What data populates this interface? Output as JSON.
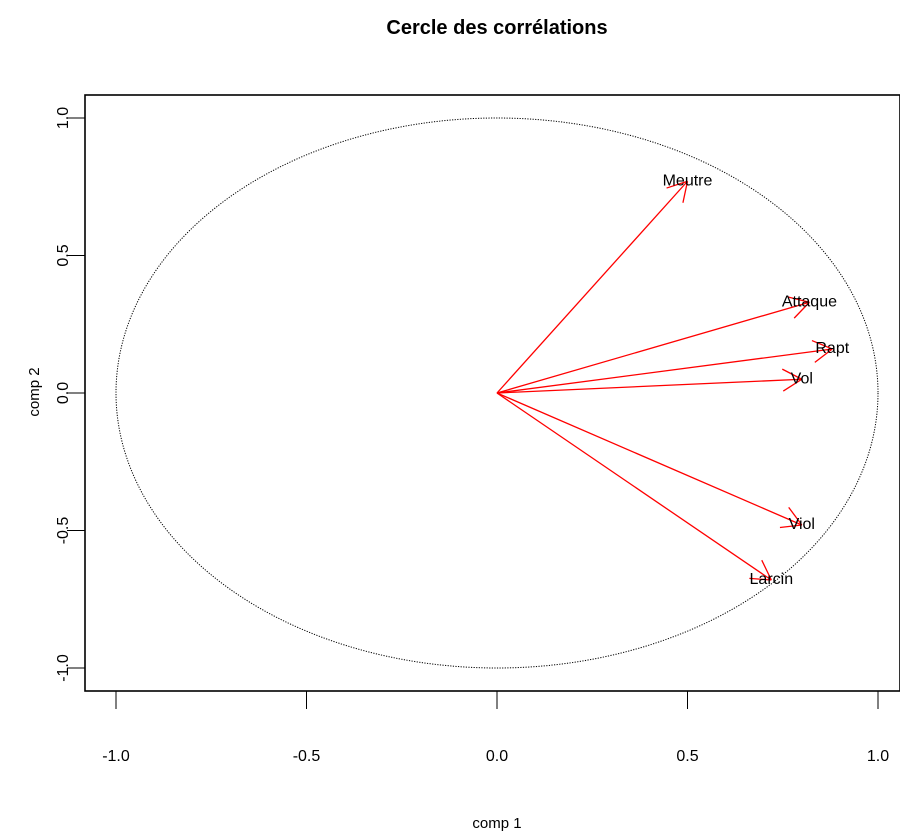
{
  "chart_data": {
    "type": "scatter",
    "title": "Cercle des corrélations",
    "xlabel": "comp 1",
    "ylabel": "comp 2",
    "xlim": [
      -1.05,
      1.05
    ],
    "ylim": [
      -1.08,
      1.08
    ],
    "xticks": [
      -1.0,
      -0.5,
      0.0,
      0.5,
      1.0
    ],
    "yticks": [
      -1.0,
      -0.5,
      0.0,
      0.5,
      1.0
    ],
    "xtick_labels": [
      "-1.0",
      "-0.5",
      "0.0",
      "0.5",
      "1.0"
    ],
    "ytick_labels": [
      "-1.0",
      "-0.5",
      "0.0",
      "0.5",
      "1.0"
    ],
    "circle": {
      "radius": 1.0,
      "style": "dotted"
    },
    "arrow_color": "#ff0000",
    "variables": [
      {
        "name": "Meutre",
        "x": 0.5,
        "y": 0.77
      },
      {
        "name": "Attaque",
        "x": 0.82,
        "y": 0.33
      },
      {
        "name": "Rapt",
        "x": 0.88,
        "y": 0.16
      },
      {
        "name": "Vol",
        "x": 0.8,
        "y": 0.05
      },
      {
        "name": "Viol",
        "x": 0.8,
        "y": -0.48
      },
      {
        "name": "Larcin",
        "x": 0.72,
        "y": -0.68
      }
    ],
    "grid": false,
    "legend": "none"
  }
}
